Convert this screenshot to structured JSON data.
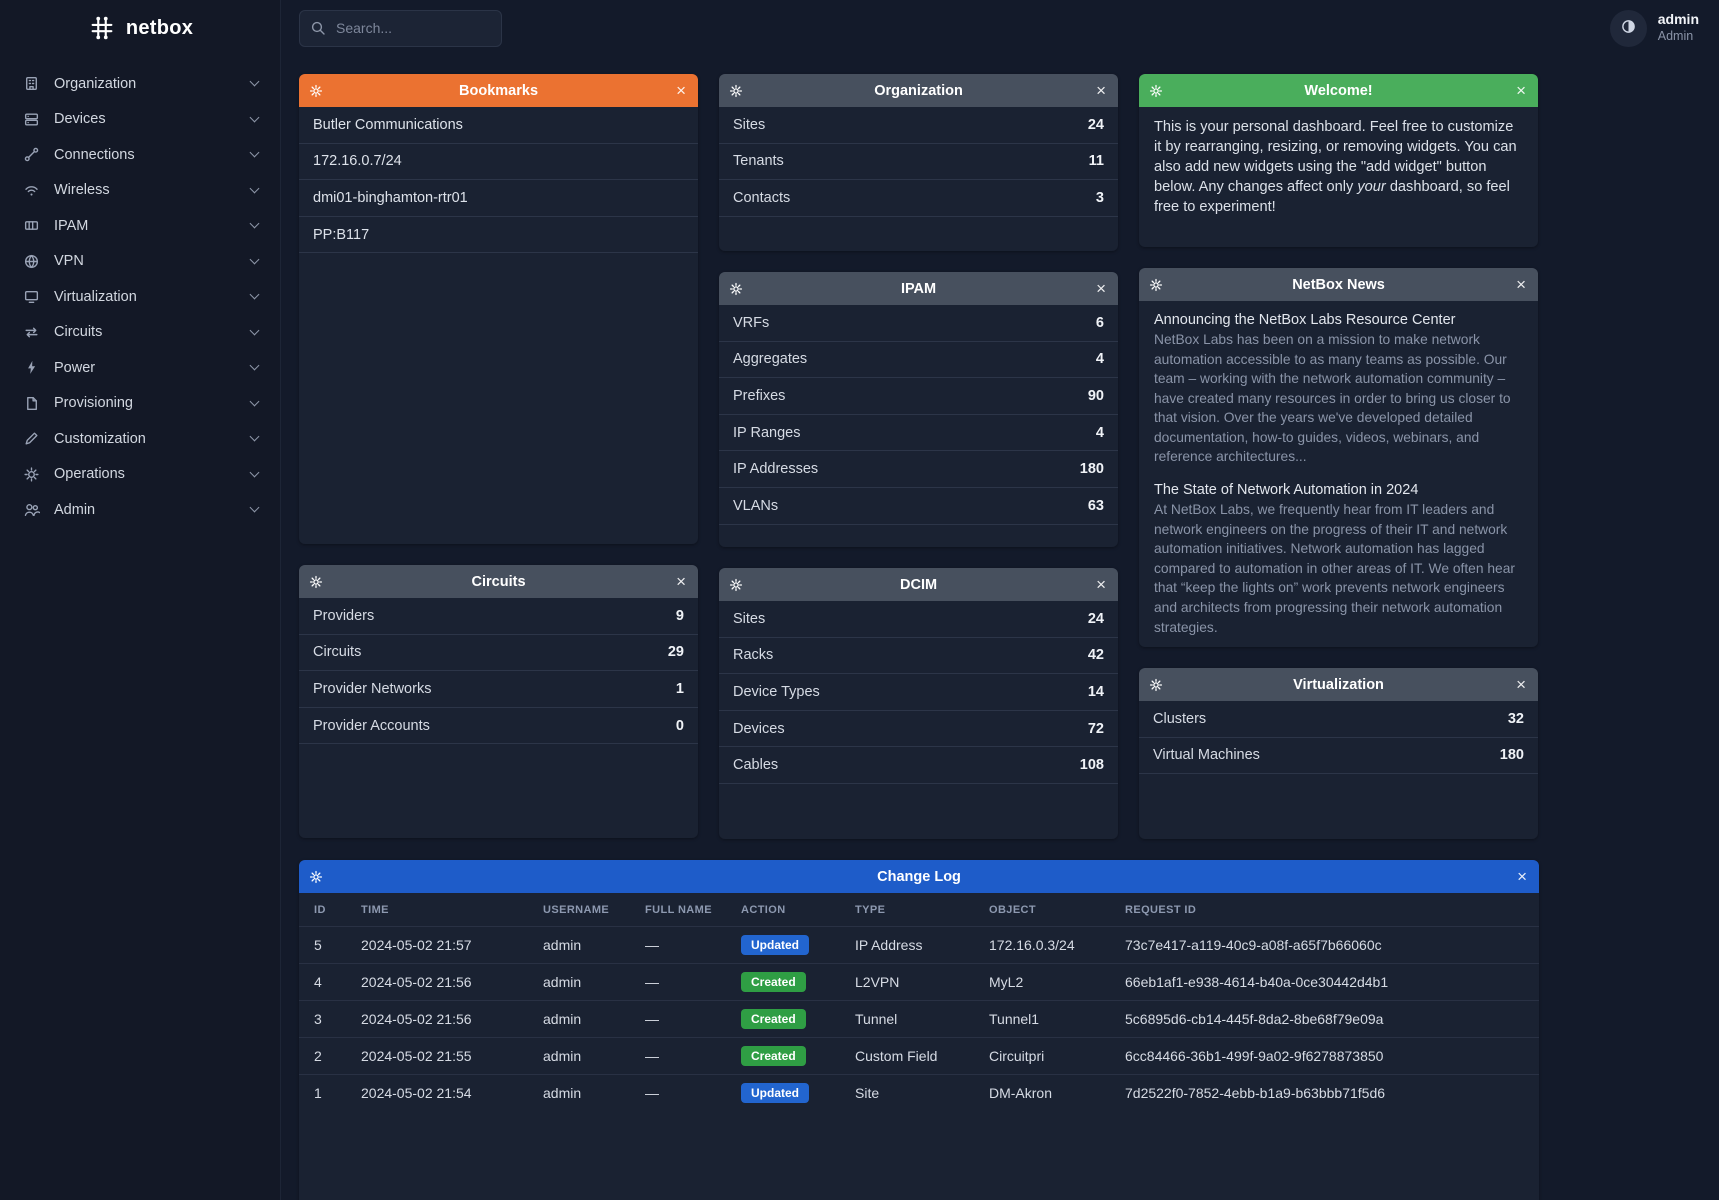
{
  "brand": {
    "name": "netbox"
  },
  "topbar": {
    "search_placeholder": "Search...",
    "user_name": "admin",
    "user_role": "Admin"
  },
  "sidebar": {
    "items": [
      {
        "icon": "organization-icon",
        "label": "Organization"
      },
      {
        "icon": "devices-icon",
        "label": "Devices"
      },
      {
        "icon": "connections-icon",
        "label": "Connections"
      },
      {
        "icon": "wireless-icon",
        "label": "Wireless"
      },
      {
        "icon": "ipam-icon",
        "label": "IPAM"
      },
      {
        "icon": "vpn-icon",
        "label": "VPN"
      },
      {
        "icon": "virtualization-icon",
        "label": "Virtualization"
      },
      {
        "icon": "circuits-icon",
        "label": "Circuits"
      },
      {
        "icon": "power-icon",
        "label": "Power"
      },
      {
        "icon": "provisioning-icon",
        "label": "Provisioning"
      },
      {
        "icon": "customization-icon",
        "label": "Customization"
      },
      {
        "icon": "operations-icon",
        "label": "Operations"
      },
      {
        "icon": "admin-icon",
        "label": "Admin"
      }
    ]
  },
  "colors": {
    "bookmarks_header": "#eb7231",
    "welcome_header": "#4aae5c",
    "changelog_header": "#1e5cc9",
    "link": "#5f9fdc",
    "badge_updated": "#2265cf",
    "badge_created": "#2f9e44"
  },
  "widgets": {
    "bookmarks": {
      "title": "Bookmarks",
      "items": [
        "Butler Communications",
        "172.16.0.7/24",
        "dmi01-binghamton-rtr01",
        "PP:B117"
      ]
    },
    "circuits": {
      "title": "Circuits",
      "rows": [
        [
          "Providers",
          "9"
        ],
        [
          "Circuits",
          "29"
        ],
        [
          "Provider Networks",
          "1"
        ],
        [
          "Provider Accounts",
          "0"
        ]
      ]
    },
    "organization": {
      "title": "Organization",
      "rows": [
        [
          "Sites",
          "24"
        ],
        [
          "Tenants",
          "11"
        ],
        [
          "Contacts",
          "3"
        ]
      ]
    },
    "ipam": {
      "title": "IPAM",
      "rows": [
        [
          "VRFs",
          "6"
        ],
        [
          "Aggregates",
          "4"
        ],
        [
          "Prefixes",
          "90"
        ],
        [
          "IP Ranges",
          "4"
        ],
        [
          "IP Addresses",
          "180"
        ],
        [
          "VLANs",
          "63"
        ]
      ]
    },
    "dcim": {
      "title": "DCIM",
      "rows": [
        [
          "Sites",
          "24"
        ],
        [
          "Racks",
          "42"
        ],
        [
          "Device Types",
          "14"
        ],
        [
          "Devices",
          "72"
        ],
        [
          "Cables",
          "108"
        ]
      ]
    },
    "welcome": {
      "title": "Welcome!",
      "text_parts": [
        "This is your personal dashboard. Feel free to customize it by rearranging, resizing, or removing widgets. You can also add new widgets using the \"add widget\" button below. Any changes affect only ",
        "your",
        " dashboard, so feel free to experiment!"
      ]
    },
    "news": {
      "title": "NetBox News",
      "articles": [
        {
          "title": "Announcing the NetBox Labs Resource Center",
          "body": "NetBox Labs has been on a mission to make network automation accessible to as many teams as possible. Our team – working with the network automation community – have created many resources in order to bring us closer to that vision. Over the years we've developed detailed documentation, how-to guides, videos, webinars, and reference architectures..."
        },
        {
          "title": "The State of Network Automation in 2024",
          "body": "At NetBox Labs, we frequently hear from IT leaders and network engineers on the progress of their IT and network automation initiatives. Network automation has lagged compared to automation in other areas of IT. We often hear that “keep the lights on” work prevents network engineers and architects from progressing their network automation strategies."
        }
      ]
    },
    "virtualization": {
      "title": "Virtualization",
      "rows": [
        [
          "Clusters",
          "32"
        ],
        [
          "Virtual Machines",
          "180"
        ]
      ]
    },
    "changelog": {
      "title": "Change Log",
      "headers": [
        "ID",
        "TIME",
        "USERNAME",
        "FULL NAME",
        "ACTION",
        "TYPE",
        "OBJECT",
        "REQUEST ID"
      ],
      "rows": [
        {
          "id": "5",
          "time": "2024-05-02 21:57",
          "username": "admin",
          "full_name": "—",
          "action": "Updated",
          "action_color": "blue",
          "type": "IP Address",
          "object": "172.16.0.3/24",
          "request_id": "73c7e417-a119-40c9-a08f-a65f7b66060c"
        },
        {
          "id": "4",
          "time": "2024-05-02 21:56",
          "username": "admin",
          "full_name": "—",
          "action": "Created",
          "action_color": "green",
          "type": "L2VPN",
          "object": "MyL2",
          "request_id": "66eb1af1-e938-4614-b40a-0ce30442d4b1"
        },
        {
          "id": "3",
          "time": "2024-05-02 21:56",
          "username": "admin",
          "full_name": "—",
          "action": "Created",
          "action_color": "green",
          "type": "Tunnel",
          "object": "Tunnel1",
          "request_id": "5c6895d6-cb14-445f-8da2-8be68f79e09a"
        },
        {
          "id": "2",
          "time": "2024-05-02 21:55",
          "username": "admin",
          "full_name": "—",
          "action": "Created",
          "action_color": "green",
          "type": "Custom Field",
          "object": "Circuitpri",
          "request_id": "6cc84466-36b1-499f-9a02-9f6278873850"
        },
        {
          "id": "1",
          "time": "2024-05-02 21:54",
          "username": "admin",
          "full_name": "—",
          "action": "Updated",
          "action_color": "blue",
          "type": "Site",
          "object": "DM-Akron",
          "request_id": "7d2522f0-7852-4ebb-b1a9-b63bbb71f5d6"
        }
      ]
    }
  }
}
